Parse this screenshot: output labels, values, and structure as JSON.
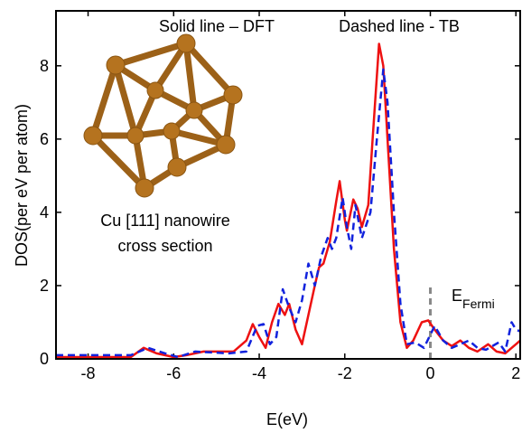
{
  "chart_data": {
    "type": "line",
    "annotations": [
      "Solid line – DFT",
      "Dashed line - TB",
      "Cu [111] nanowire",
      "cross section"
    ],
    "fermi_label": {
      "text": "E",
      "subscript": "Fermi"
    },
    "xlabel": "E(eV)",
    "ylabel": "DOS(per eV per atom)",
    "xlim": [
      -8.75,
      2.1
    ],
    "ylim": [
      0,
      9.5
    ],
    "xticks": [
      -8,
      -6,
      -4,
      -2,
      0,
      2
    ],
    "yticks": [
      0,
      2,
      4,
      6,
      8
    ],
    "fermi_line": {
      "x": 0,
      "y": [
        0,
        2
      ],
      "color": "#888888"
    },
    "series": [
      {
        "color": "#ee1111",
        "dashed": false,
        "x": [
          -8.75,
          -7,
          -6.7,
          -6.4,
          -6,
          -5.7,
          -5.3,
          -5,
          -4.6,
          -4.3,
          -4.15,
          -4.0,
          -3.85,
          -3.7,
          -3.55,
          -3.4,
          -3.3,
          -3.15,
          -3.0,
          -2.85,
          -2.7,
          -2.6,
          -2.5,
          -2.35,
          -2.2,
          -2.12,
          -2.0,
          -1.95,
          -1.8,
          -1.7,
          -1.6,
          -1.45,
          -1.35,
          -1.2,
          -1.1,
          -1.0,
          -0.85,
          -0.7,
          -0.55,
          -0.4,
          -0.2,
          -0.05,
          0.1,
          0.3,
          0.5,
          0.7,
          0.9,
          1.1,
          1.35,
          1.55,
          1.75,
          2.0,
          2.1
        ],
        "values": [
          0.05,
          0.05,
          0.3,
          0.15,
          0.05,
          0.1,
          0.2,
          0.2,
          0.2,
          0.5,
          0.95,
          0.6,
          0.3,
          1.0,
          1.5,
          1.2,
          1.5,
          0.8,
          0.4,
          1.2,
          2.0,
          2.5,
          2.6,
          3.2,
          4.3,
          4.85,
          3.8,
          3.5,
          4.35,
          4.1,
          3.6,
          4.2,
          6.0,
          8.6,
          8.0,
          6.0,
          3.0,
          1.0,
          0.3,
          0.5,
          1.0,
          1.05,
          0.8,
          0.5,
          0.35,
          0.5,
          0.3,
          0.2,
          0.4,
          0.2,
          0.15,
          0.4,
          0.5
        ]
      },
      {
        "color": "#1122dd",
        "dashed": true,
        "x": [
          -8.75,
          -7,
          -6.6,
          -6.2,
          -5.9,
          -5.5,
          -4.7,
          -4.3,
          -4.05,
          -3.9,
          -3.75,
          -3.6,
          -3.45,
          -3.3,
          -3.15,
          -3.0,
          -2.85,
          -2.7,
          -2.55,
          -2.4,
          -2.3,
          -2.2,
          -2.05,
          -1.95,
          -1.85,
          -1.75,
          -1.6,
          -1.4,
          -1.25,
          -1.1,
          -1.0,
          -0.85,
          -0.7,
          -0.55,
          -0.35,
          -0.15,
          0.1,
          0.3,
          0.5,
          0.7,
          0.9,
          1.1,
          1.3,
          1.6,
          1.75,
          1.9,
          2.0,
          2.1
        ],
        "values": [
          0.1,
          0.1,
          0.3,
          0.15,
          0.05,
          0.2,
          0.15,
          0.2,
          0.9,
          0.95,
          0.4,
          0.6,
          1.9,
          1.4,
          1.0,
          1.6,
          2.6,
          2.0,
          2.8,
          3.3,
          3.0,
          3.3,
          4.4,
          3.6,
          3.0,
          4.2,
          3.3,
          4.0,
          6.0,
          7.9,
          7.0,
          4.0,
          1.5,
          0.4,
          0.45,
          0.3,
          0.9,
          0.5,
          0.3,
          0.4,
          0.5,
          0.3,
          0.25,
          0.45,
          0.2,
          1.0,
          0.8,
          0.75
        ]
      }
    ]
  }
}
